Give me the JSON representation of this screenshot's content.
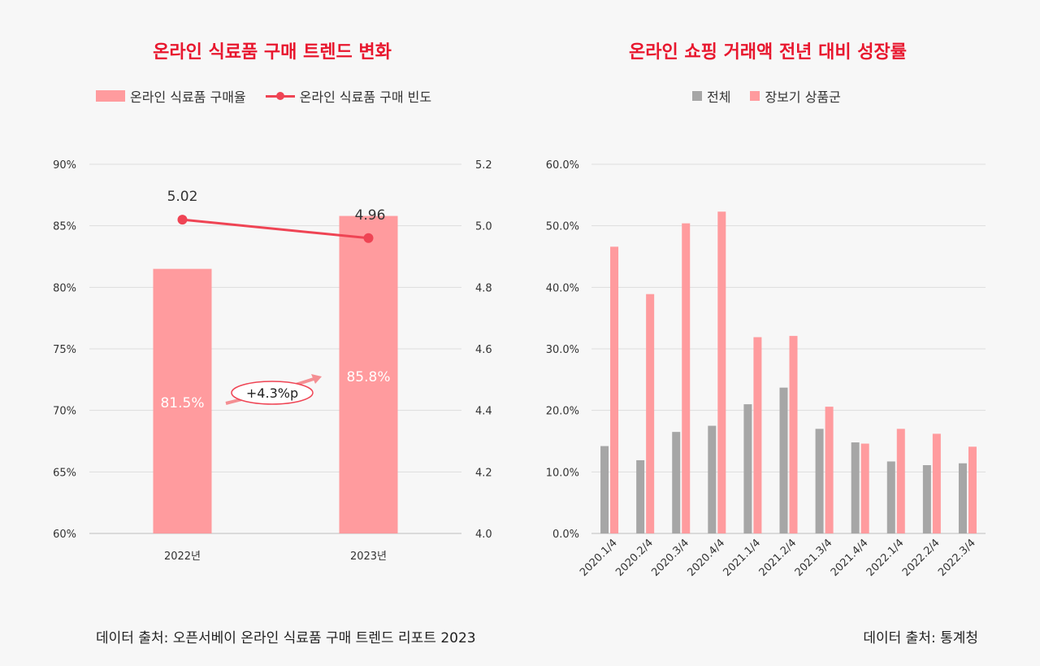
{
  "left_chart": {
    "title": "온라인 식료품 구매 트렌드 변화",
    "legend": [
      {
        "name": "온라인 식료품 구매율",
        "kind": "bar",
        "color": "#ff9b9e"
      },
      {
        "name": "온라인 식료품 구매 빈도",
        "kind": "line",
        "color": "#ef4454"
      }
    ],
    "source": "데이터 출처: 오픈서베이 온라인 식료품 구매 트렌드 리포트 2023",
    "annotation": "+4.3%p"
  },
  "right_chart": {
    "title": "온라인 쇼핑 거래액 전년 대비 성장률",
    "legend": [
      {
        "name": "전체",
        "color": "#a6a6a6"
      },
      {
        "name": "장보기 상품군",
        "color": "#ff9b9e"
      }
    ],
    "source": "데이터 출처: 통계청"
  },
  "chart_data": [
    {
      "type": "bar",
      "title": "온라인 식료품 구매 트렌드 변화",
      "categories": [
        "2022년",
        "2023년"
      ],
      "series": [
        {
          "name": "온라인 식료품 구매율",
          "type": "bar",
          "axis": "left",
          "values": [
            81.5,
            85.8
          ],
          "labels": [
            "81.5%",
            "85.8%"
          ],
          "color": "#ff9b9e"
        },
        {
          "name": "온라인 식료품 구매 빈도",
          "type": "line",
          "axis": "right",
          "values": [
            5.02,
            4.96
          ],
          "labels": [
            "5.02",
            "4.96"
          ],
          "color": "#ef4454"
        }
      ],
      "y_left": {
        "range": [
          60,
          90
        ],
        "ticks": [
          "60%",
          "65%",
          "70%",
          "75%",
          "80%",
          "85%",
          "90%"
        ]
      },
      "y_right": {
        "range": [
          4.0,
          5.2
        ],
        "ticks": [
          "4.0",
          "4.2",
          "4.4",
          "4.6",
          "4.8",
          "5.0",
          "5.2"
        ]
      },
      "grid": true,
      "legend_position": "top"
    },
    {
      "type": "bar",
      "title": "온라인 쇼핑 거래액 전년 대비 성장률",
      "categories": [
        "2020.1/4",
        "2020.2/4",
        "2020.3/4",
        "2020.4/4",
        "2021.1/4",
        "2021.2/4",
        "2021.3/4",
        "2021.4/4",
        "2022.1/4",
        "2022.2/4",
        "2022.3/4"
      ],
      "series": [
        {
          "name": "전체",
          "values": [
            14.2,
            11.9,
            16.5,
            17.5,
            21.0,
            23.7,
            17.0,
            14.8,
            11.7,
            11.1,
            11.4
          ],
          "color": "#a6a6a6"
        },
        {
          "name": "장보기 상품군",
          "values": [
            46.6,
            38.9,
            50.4,
            52.3,
            31.9,
            32.1,
            20.6,
            14.6,
            17.0,
            16.2,
            14.1
          ],
          "color": "#ff9b9e"
        }
      ],
      "y_axis": {
        "range": [
          0,
          60
        ],
        "ticks": [
          "0.0%",
          "10.0%",
          "20.0%",
          "30.0%",
          "40.0%",
          "50.0%",
          "60.0%"
        ]
      },
      "grid": true,
      "legend_position": "top"
    }
  ]
}
